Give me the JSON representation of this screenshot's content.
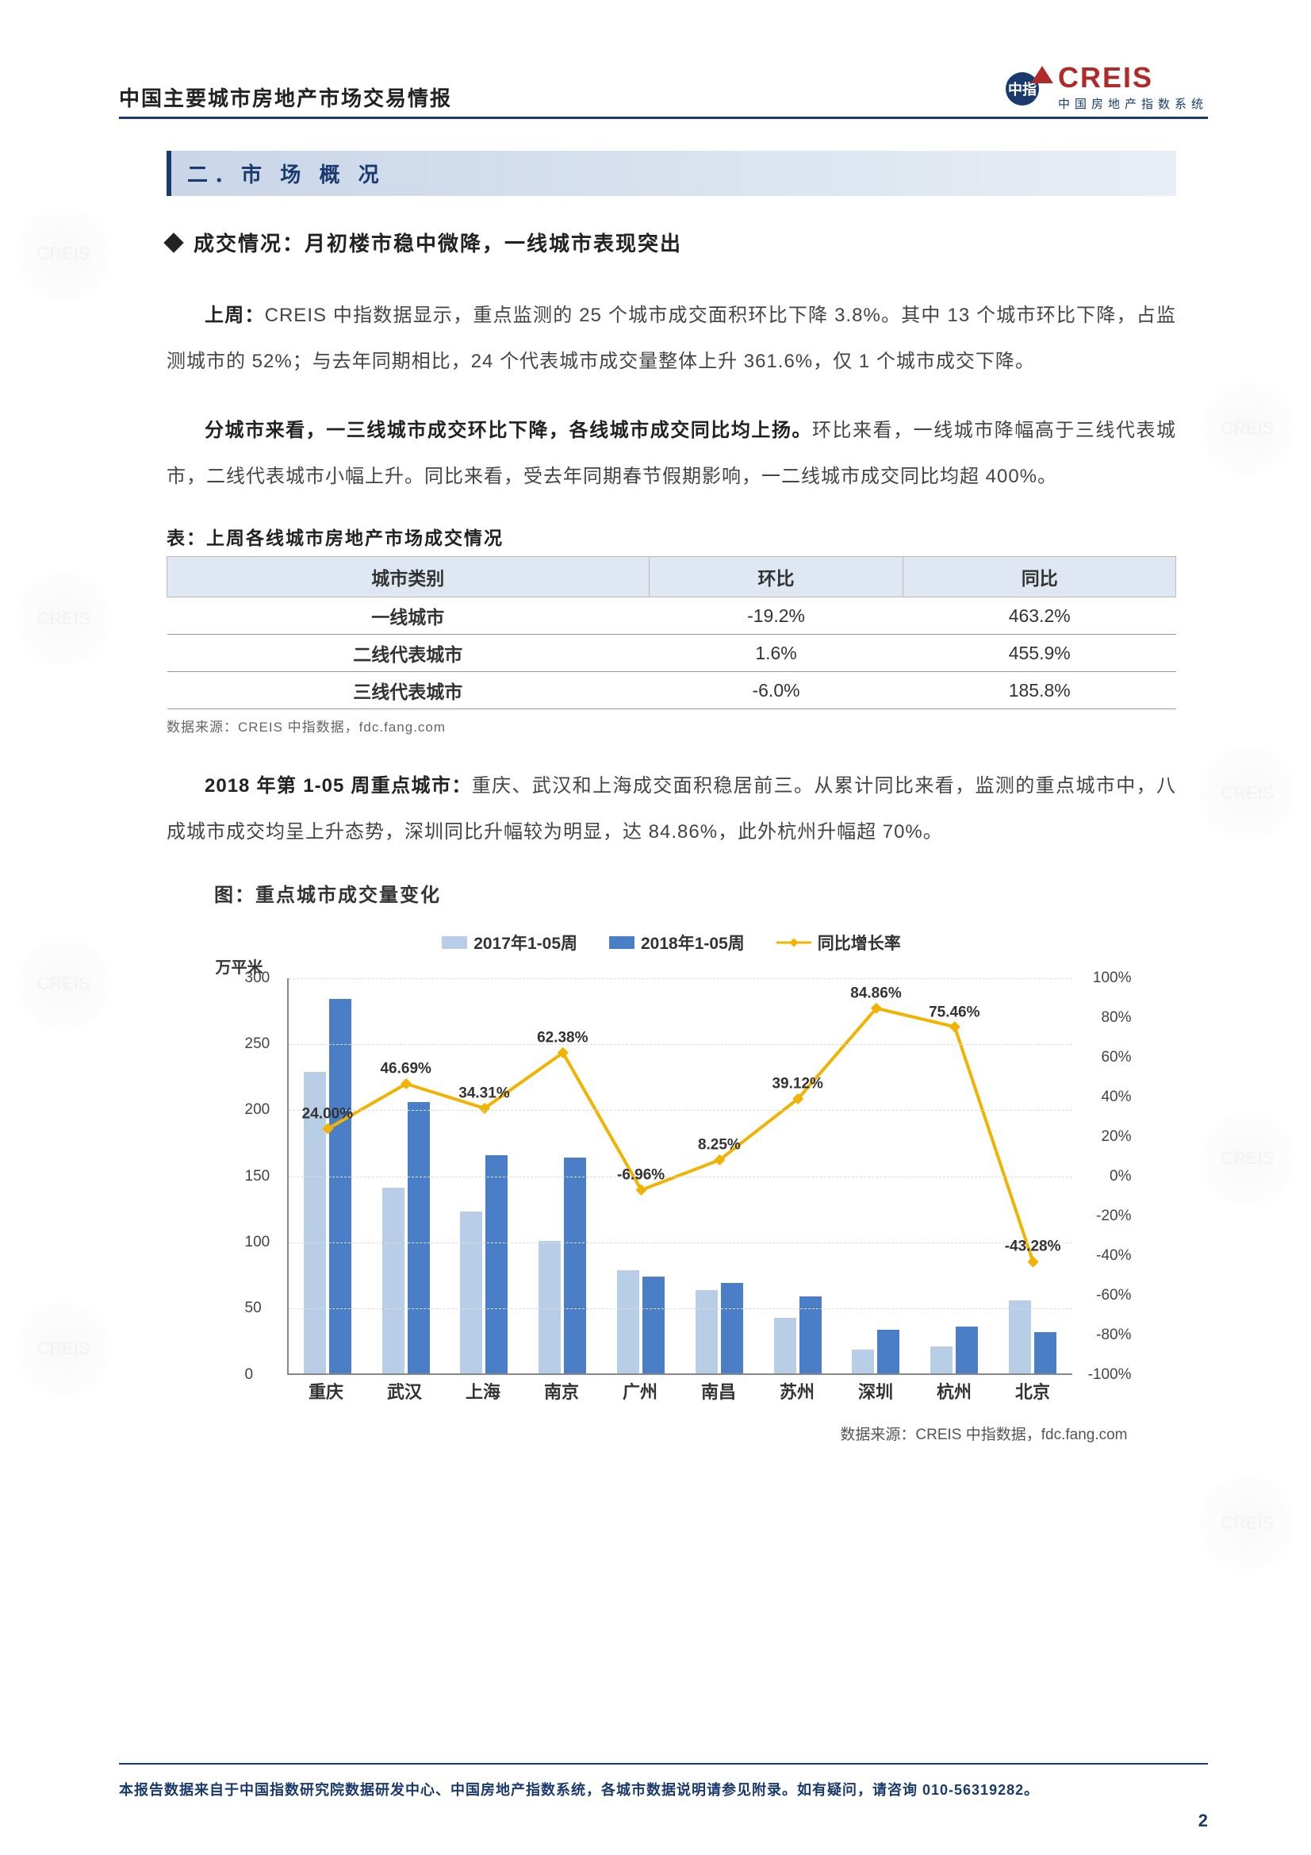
{
  "header": {
    "doc_title": "中国主要城市房地产市场交易情报",
    "logo_main": "CREIS",
    "logo_sub": "中国房地产指数系统",
    "logo_badge_char": "中指"
  },
  "section": {
    "number_title": "二．市 场 概 况",
    "bullet_heading": "成交情况：月初楼市稳中微降，一线城市表现突出"
  },
  "paragraphs": {
    "p1_lead": "上周：",
    "p1_body": "CREIS 中指数据显示，重点监测的 25 个城市成交面积环比下降 3.8%。其中 13 个城市环比下降，占监测城市的 52%；与去年同期相比，24 个代表城市成交量整体上升 361.6%，仅 1 个城市成交下降。",
    "p2_lead": "分城市来看，一三线城市成交环比下降，各线城市成交同比均上扬。",
    "p2_body": "环比来看，一线城市降幅高于三线代表城市，二线代表城市小幅上升。同比来看，受去年同期春节假期影响，一二线城市成交同比均超 400%。",
    "p3_lead": "2018 年第 1-05 周重点城市：",
    "p3_body": "重庆、武汉和上海成交面积稳居前三。从累计同比来看，监测的重点城市中，八成城市成交均呈上升态势，深圳同比升幅较为明显，达 84.86%，此外杭州升幅超 70%。"
  },
  "table": {
    "title": "表：上周各线城市房地产市场成交情况",
    "columns": [
      "城市类别",
      "环比",
      "同比"
    ],
    "rows": [
      [
        "一线城市",
        "-19.2%",
        "463.2%"
      ],
      [
        "二线代表城市",
        "1.6%",
        "455.9%"
      ],
      [
        "三线代表城市",
        "-6.0%",
        "185.8%"
      ]
    ],
    "source": "数据来源：CREIS 中指数据，fdc.fang.com"
  },
  "chart": {
    "title": "图：重点城市成交量变化",
    "legend": {
      "series_a": "2017年1-05周",
      "series_b": "2018年1-05周",
      "series_line": "同比增长率"
    },
    "y_left_label": "万平米",
    "y_left_max": 300,
    "y_left_step": 50,
    "y_right_max": 100,
    "y_right_min": -100,
    "y_right_step": 20,
    "colors": {
      "bar_a": "#b8cde6",
      "bar_b": "#4a7ec7",
      "line": "#f2b200",
      "grid": "#dddddd"
    },
    "cities": [
      "重庆",
      "武汉",
      "上海",
      "南京",
      "广州",
      "南昌",
      "苏州",
      "深圳",
      "杭州",
      "北京"
    ],
    "values_2017": [
      228,
      140,
      122,
      100,
      78,
      63,
      42,
      18,
      20,
      55
    ],
    "values_2018": [
      283,
      205,
      165,
      163,
      73,
      68,
      58,
      33,
      35,
      31
    ],
    "growth_pct": [
      24.0,
      46.69,
      34.31,
      62.38,
      -6.96,
      8.25,
      39.12,
      84.86,
      75.46,
      -43.28
    ],
    "growth_labels": [
      "24.00%",
      "46.69%",
      "34.31%",
      "62.38%",
      "-6.96%",
      "8.25%",
      "39.12%",
      "84.86%",
      "75.46%",
      "-43.28%"
    ],
    "source": "数据来源：CREIS 中指数据，fdc.fang.com"
  },
  "footer": {
    "text": "本报告数据来自于中国指数研究院数据研发中心、中国房地产指数系统，各城市数据说明请参见附录。如有疑问，请咨询 010-56319282。",
    "page": "2"
  }
}
